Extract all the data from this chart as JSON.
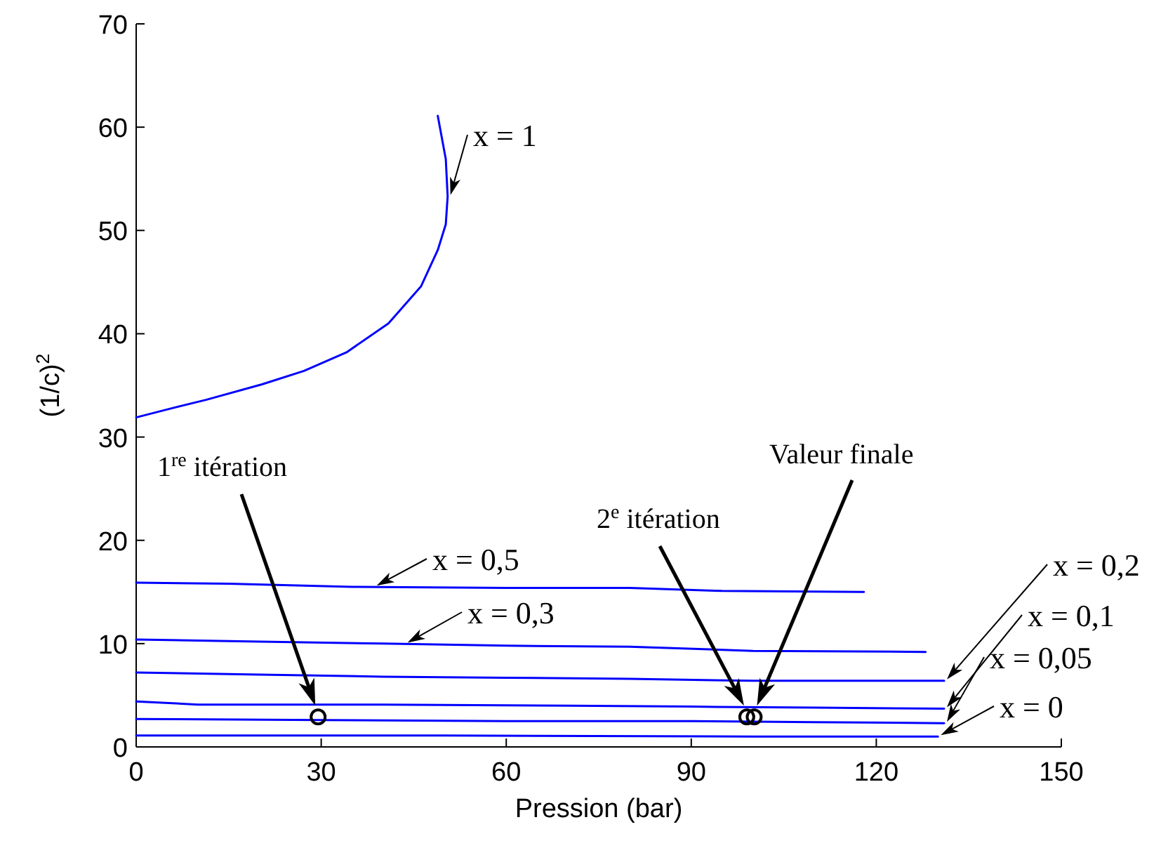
{
  "chart_data": {
    "type": "line",
    "xlabel": "Pression (bar)",
    "ylabel": "(1/c)$^{2}$",
    "xlim": [
      0,
      150
    ],
    "xticks": [
      0,
      30,
      60,
      90,
      120,
      150
    ],
    "ylim": [
      0,
      70
    ],
    "yticks": [
      0,
      10,
      20,
      30,
      40,
      50,
      60,
      70
    ],
    "grid": false,
    "legend": false,
    "marker": "none",
    "line_style": "solid",
    "series": [
      {
        "name": "x = 1",
        "color": "#0000ff",
        "x": [
          0,
          5.2,
          11.3,
          20.4,
          27.2,
          34.1,
          40.9,
          46.2,
          48.9,
          50.2,
          50.5,
          50.2,
          48.9
        ],
        "values": [
          31.9,
          32.7,
          33.6,
          35.1,
          36.4,
          38.2,
          41.0,
          44.6,
          48.1,
          50.6,
          53.3,
          56.9,
          61.1
        ]
      },
      {
        "name": "x = 0,5",
        "color": "#0000ff",
        "x": [
          0,
          15,
          35,
          60,
          80,
          95,
          118
        ],
        "values": [
          15.9,
          15.8,
          15.5,
          15.4,
          15.4,
          15.1,
          15.0
        ]
      },
      {
        "name": "x = 0,3",
        "color": "#0000ff",
        "x": [
          0,
          20,
          40,
          60,
          80,
          100,
          128
        ],
        "values": [
          10.4,
          10.2,
          10.0,
          9.8,
          9.7,
          9.3,
          9.2
        ]
      },
      {
        "name": "x = 0,2",
        "color": "#0000ff",
        "x": [
          0,
          20,
          40,
          60,
          80,
          100,
          131
        ],
        "values": [
          7.2,
          7.0,
          6.8,
          6.7,
          6.6,
          6.4,
          6.4
        ]
      },
      {
        "name": "x = 0,1",
        "color": "#0000ff",
        "x": [
          0,
          10,
          40,
          70,
          90,
          110,
          131
        ],
        "values": [
          4.4,
          4.1,
          4.1,
          4.0,
          3.9,
          3.8,
          3.7
        ]
      },
      {
        "name": "x = 0,05",
        "color": "#0000ff",
        "x": [
          0,
          30,
          60,
          90,
          110,
          131
        ],
        "values": [
          2.7,
          2.6,
          2.5,
          2.5,
          2.4,
          2.3
        ]
      },
      {
        "name": "x = 0",
        "color": "#0000ff",
        "x": [
          0,
          50,
          100,
          130
        ],
        "values": [
          1.1,
          1.1,
          1.0,
          1.0
        ]
      },
      {
        "type": "scatter",
        "marker": "circle",
        "color": "#000000",
        "x": [
          29.5,
          99,
          100.2
        ],
        "values": [
          2.9,
          2.9,
          2.9
        ]
      }
    ],
    "annotations": [
      "1$^{re}$ itération",
      "2$^{e}$ itération",
      "Valeur finale"
    ]
  }
}
